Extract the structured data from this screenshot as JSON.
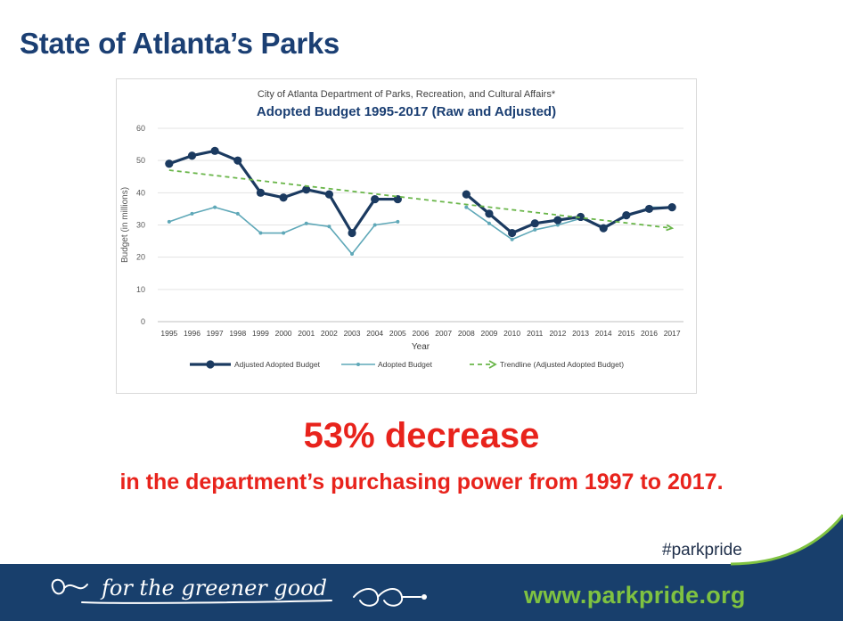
{
  "slide": {
    "title": "State of Atlanta’s Parks",
    "headline": "53% decrease",
    "subline": "in the department’s purchasing power from 1997 to 2017.",
    "hashtag": "#parkpride",
    "website": "www.parkpride.org",
    "tagline": "for the greener good"
  },
  "colors": {
    "title": "#1b3f73",
    "accent_red": "#e8231c",
    "footer_navy": "#183f6c",
    "footer_green": "#7fc241",
    "series_adjusted": "#1b3a60",
    "series_raw": "#5fa8b8",
    "trendline": "#6ab64a"
  },
  "chart_data": {
    "type": "line",
    "supertitle": "City of Atlanta Department of Parks, Recreation, and Cultural Affairs*",
    "title": "Adopted Budget 1995-2017 (Raw and Adjusted)",
    "xlabel": "Year",
    "ylabel": "Budget (in millions)",
    "ylim": [
      0,
      60
    ],
    "yticks": [
      0,
      10,
      20,
      30,
      40,
      50,
      60
    ],
    "grid": true,
    "legend_position": "bottom",
    "categories": [
      "1995",
      "1996",
      "1997",
      "1998",
      "1999",
      "2000",
      "2001",
      "2002",
      "2003",
      "2004",
      "2005",
      "2006",
      "2007",
      "2008",
      "2009",
      "2010",
      "2011",
      "2012",
      "2013",
      "2014",
      "2015",
      "2016",
      "2017"
    ],
    "series": [
      {
        "name": "Adjusted Adopted Budget",
        "values": [
          49,
          51.5,
          53,
          50,
          40,
          38.5,
          41,
          39.5,
          27.5,
          38,
          38,
          null,
          null,
          39.5,
          33.5,
          27.5,
          30.5,
          31.5,
          32.5,
          29,
          33,
          35,
          35.5
        ]
      },
      {
        "name": "Adopted Budget",
        "values": [
          31,
          33.5,
          35.5,
          33.5,
          27.5,
          27.5,
          30.5,
          29.5,
          21,
          30,
          31,
          null,
          null,
          35.5,
          30.5,
          25.5,
          28.5,
          30,
          32,
          29.5,
          32.5,
          35.5,
          35.5
        ]
      },
      {
        "name": "Trendline (Adjusted Adopted Budget)",
        "values": [
          47,
          null,
          null,
          null,
          null,
          null,
          null,
          null,
          null,
          null,
          null,
          null,
          null,
          null,
          null,
          null,
          null,
          null,
          null,
          null,
          null,
          null,
          29
        ]
      }
    ]
  }
}
